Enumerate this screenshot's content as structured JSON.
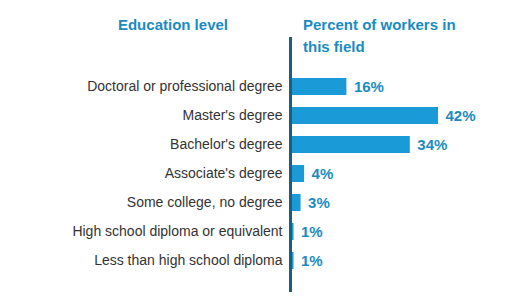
{
  "chart_data": {
    "type": "bar",
    "orientation": "horizontal",
    "y_label": "Education level",
    "x_label": "Percent of workers in this field",
    "categories": [
      "Doctoral or professional degree",
      "Master's degree",
      "Bachelor's degree",
      "Associate's degree",
      "Some college, no degree",
      "High school diploma or equivalent",
      "Less than high school diploma"
    ],
    "values": [
      16,
      42,
      34,
      4,
      3,
      1,
      1
    ],
    "value_labels": [
      "16%",
      "42%",
      "34%",
      "4%",
      "3%",
      "1%",
      "1%"
    ],
    "color": "#1a9bd7",
    "data_labels": true,
    "tick_labels": "y"
  }
}
